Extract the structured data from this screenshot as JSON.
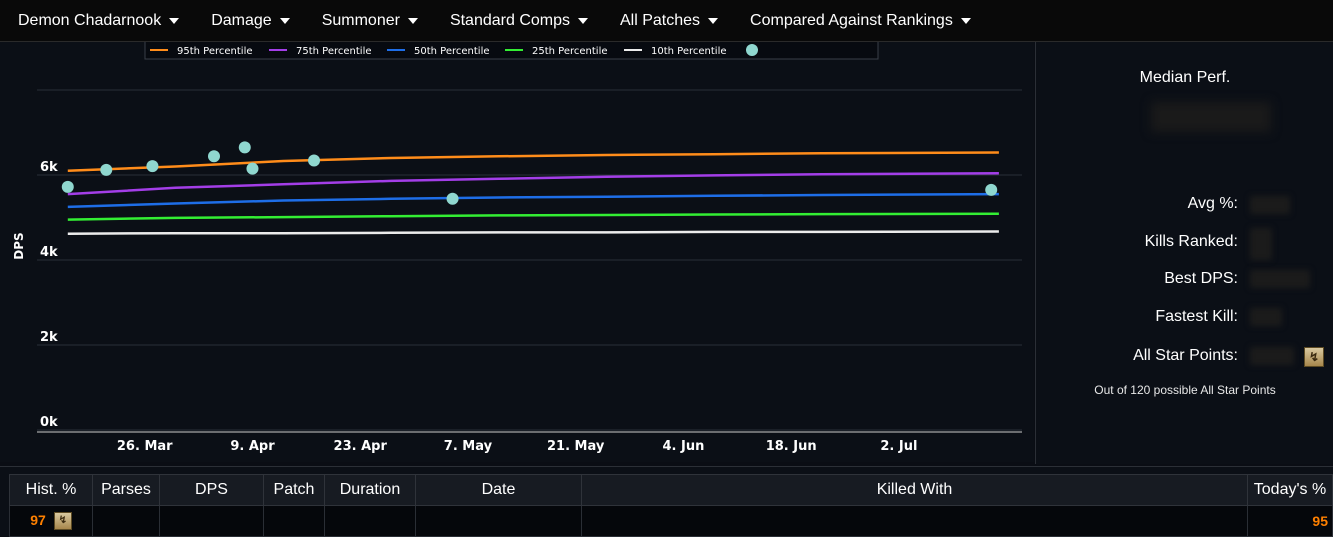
{
  "menu": [
    {
      "label": "Demon Chadarnook"
    },
    {
      "label": "Damage"
    },
    {
      "label": "Summoner"
    },
    {
      "label": "Standard Comps"
    },
    {
      "label": "All Patches"
    },
    {
      "label": "Compared Against Rankings"
    }
  ],
  "side": {
    "title": "Median Perf.",
    "stats": [
      {
        "label": "Avg %:"
      },
      {
        "label": "Kills Ranked:"
      },
      {
        "label": "Best DPS:"
      },
      {
        "label": "Fastest Kill:"
      },
      {
        "label": "All Star Points:"
      }
    ],
    "footnote": "Out of 120 possible All Star Points"
  },
  "table": {
    "headers": [
      "Hist. %",
      "Parses",
      "DPS",
      "Patch",
      "Duration",
      "Date",
      "Killed With",
      "Today's %"
    ],
    "row": {
      "hist": "97",
      "today": "95"
    }
  },
  "chart_data": {
    "type": "line",
    "ylabel": "DPS",
    "ylim": [
      0,
      8000
    ],
    "y_ticks": [
      "0k",
      "2k",
      "4k",
      "6k"
    ],
    "x_ticks": [
      "26. Mar",
      "9. Apr",
      "23. Apr",
      "7. May",
      "21. May",
      "4. Jun",
      "18. Jun",
      "2. Jul"
    ],
    "legend_position": "top",
    "series": [
      {
        "name": "95th Percentile",
        "color": "#ff8c1a",
        "x": [
          "Mar 16",
          "Mar 30",
          "Apr 13",
          "Apr 27",
          "May 11",
          "May 25",
          "Jun 8",
          "Jun 22",
          "Jul 15"
        ],
        "values": [
          6100,
          6200,
          6330,
          6400,
          6440,
          6470,
          6490,
          6510,
          6530
        ]
      },
      {
        "name": "75th Percentile",
        "color": "#a33ee8",
        "x": [
          "Mar 16",
          "Mar 30",
          "Apr 13",
          "Apr 27",
          "May 11",
          "May 25",
          "Jun 8",
          "Jun 22",
          "Jul 15"
        ],
        "values": [
          5550,
          5700,
          5780,
          5860,
          5910,
          5960,
          5990,
          6020,
          6040
        ]
      },
      {
        "name": "50th Percentile",
        "color": "#1e6ee8",
        "x": [
          "Mar 16",
          "Mar 30",
          "Apr 13",
          "Apr 27",
          "May 11",
          "May 25",
          "Jun 8",
          "Jun 22",
          "Jul 15"
        ],
        "values": [
          5250,
          5330,
          5400,
          5440,
          5470,
          5490,
          5510,
          5530,
          5550
        ]
      },
      {
        "name": "25th Percentile",
        "color": "#33ee33",
        "x": [
          "Mar 16",
          "Mar 30",
          "Apr 13",
          "Apr 27",
          "May 11",
          "May 25",
          "Jun 8",
          "Jun 22",
          "Jul 15"
        ],
        "values": [
          4950,
          4990,
          5010,
          5030,
          5050,
          5060,
          5070,
          5080,
          5090
        ]
      },
      {
        "name": "10th Percentile",
        "color": "#ececec",
        "x": [
          "Mar 16",
          "Mar 30",
          "Apr 13",
          "Apr 27",
          "May 11",
          "May 25",
          "Jun 8",
          "Jun 22",
          "Jul 15"
        ],
        "values": [
          4620,
          4630,
          4630,
          4640,
          4650,
          4650,
          4660,
          4660,
          4670
        ]
      }
    ],
    "points": {
      "color": "#8fd7cf",
      "x": [
        "Mar 16",
        "Mar 21",
        "Mar 27",
        "Apr 4",
        "Apr 8",
        "Apr 9",
        "Apr 17",
        "May 5",
        "Jul 14"
      ],
      "values": [
        5720,
        6120,
        6210,
        6440,
        6650,
        6150,
        6340,
        5440,
        5650
      ]
    }
  }
}
